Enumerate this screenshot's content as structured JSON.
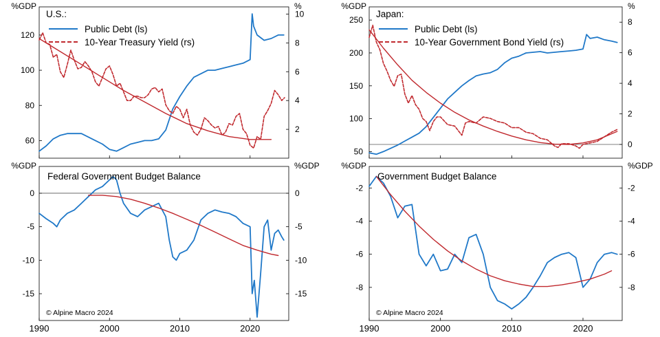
{
  "chart_data": [
    {
      "id": "us_top",
      "type": "line",
      "title": "U.S.:",
      "left_unit": "%GDP",
      "right_unit": "%",
      "ylim_left": [
        50,
        136
      ],
      "yticks_left": [
        60,
        80,
        100,
        120
      ],
      "ylim_right": [
        0,
        10.5
      ],
      "yticks_right": [
        2,
        4,
        6,
        8,
        10
      ],
      "xlim": [
        1990,
        2025.5
      ],
      "xticks": [
        1990,
        2000,
        2010,
        2020
      ],
      "legend": [
        "Public Debt (ls)",
        "10-Year Treasury Yield (rs)"
      ],
      "series": [
        {
          "name": "Public Debt (ls)",
          "axis": "left",
          "color": "#1f78c8",
          "style": "solid",
          "x": [
            1990,
            1991,
            1992,
            1993,
            1994,
            1995,
            1996,
            1997,
            1998,
            1999,
            2000,
            2001,
            2002,
            2003,
            2004,
            2005,
            2006,
            2007,
            2008,
            2009,
            2010,
            2011,
            2012,
            2013,
            2014,
            2015,
            2016,
            2017,
            2018,
            2019,
            2020,
            2020.3,
            2020.5,
            2021,
            2022,
            2023,
            2024,
            2024.8
          ],
          "y": [
            54,
            57,
            61,
            63,
            64,
            64,
            64,
            62,
            60,
            58,
            55,
            54,
            56,
            58,
            59,
            60,
            60,
            61,
            66,
            78,
            85,
            91,
            96,
            98,
            100,
            100,
            101,
            102,
            103,
            104,
            106,
            132,
            125,
            120,
            117,
            118,
            120,
            120
          ]
        },
        {
          "name": "10-Year Treasury Yield (rs)",
          "axis": "right",
          "color": "#c0282d",
          "style": "dashed",
          "x": [
            1990,
            1990.5,
            1991,
            1991.5,
            1992,
            1992.5,
            1993,
            1993.5,
            1994,
            1994.5,
            1995,
            1995.5,
            1996,
            1996.5,
            1997,
            1997.5,
            1998,
            1998.5,
            1999,
            1999.5,
            2000,
            2000.5,
            2001,
            2001.5,
            2002,
            2002.5,
            2003,
            2003.5,
            2004,
            2004.5,
            2005,
            2005.5,
            2006,
            2006.5,
            2007,
            2007.5,
            2008,
            2008.5,
            2009,
            2009.5,
            2010,
            2010.5,
            2011,
            2011.5,
            2012,
            2012.5,
            2013,
            2013.5,
            2014,
            2014.5,
            2015,
            2015.5,
            2016,
            2016.5,
            2017,
            2017.5,
            2018,
            2018.5,
            2019,
            2019.5,
            2020,
            2020.5,
            2021,
            2021.5,
            2022,
            2022.5,
            2023,
            2023.5,
            2024,
            2024.5,
            2024.9
          ],
          "y": [
            8.2,
            8.7,
            8.0,
            7.9,
            7.0,
            7.2,
            6.0,
            5.6,
            6.5,
            7.5,
            6.8,
            6.2,
            6.3,
            6.7,
            6.4,
            6.0,
            5.3,
            5.0,
            5.6,
            6.2,
            6.4,
            5.8,
            5.0,
            5.2,
            4.6,
            4.0,
            4.0,
            4.3,
            4.3,
            4.2,
            4.2,
            4.4,
            4.8,
            4.9,
            4.6,
            4.8,
            3.7,
            3.3,
            3.1,
            3.6,
            3.4,
            2.8,
            3.4,
            2.3,
            1.8,
            1.6,
            2.0,
            2.8,
            2.6,
            2.3,
            2.1,
            2.2,
            1.6,
            1.8,
            2.4,
            2.3,
            2.9,
            3.1,
            2.0,
            1.7,
            0.9,
            0.7,
            1.5,
            1.3,
            2.9,
            3.3,
            3.8,
            4.7,
            4.4,
            4.0,
            4.2
          ]
        },
        {
          "name": "",
          "axis": "right",
          "color": "#c0282d",
          "style": "trend",
          "x": [
            1990,
            1993,
            1996,
            1999,
            2002,
            2005,
            2008,
            2011,
            2014,
            2017,
            2020,
            2023
          ],
          "y": [
            8.3,
            7.4,
            6.5,
            5.6,
            4.7,
            3.9,
            3.1,
            2.4,
            1.9,
            1.5,
            1.3,
            1.3
          ]
        }
      ]
    },
    {
      "id": "japan_top",
      "type": "line",
      "title": "Japan:",
      "left_unit": "%GDP",
      "right_unit": "%",
      "ylim_left": [
        40,
        270
      ],
      "yticks_left": [
        50,
        100,
        150,
        200,
        250
      ],
      "ylim_right": [
        -0.9,
        9
      ],
      "yticks_right": [
        0,
        2,
        4,
        6,
        8
      ],
      "xlim": [
        1990,
        2025.5
      ],
      "xticks": [
        1990,
        2000,
        2010,
        2020
      ],
      "legend": [
        "Public Debt (ls)",
        "10-Year Government Bond Yield (rs)"
      ],
      "series": [
        {
          "name": "Public Debt (ls)",
          "axis": "left",
          "color": "#1f78c8",
          "style": "solid",
          "x": [
            1990,
            1991,
            1992,
            1993,
            1994,
            1995,
            1996,
            1997,
            1998,
            1999,
            2000,
            2001,
            2002,
            2003,
            2004,
            2005,
            2006,
            2007,
            2008,
            2009,
            2010,
            2011,
            2012,
            2013,
            2014,
            2015,
            2016,
            2017,
            2018,
            2019,
            2020,
            2020.5,
            2021,
            2022,
            2023,
            2024,
            2024.8
          ],
          "y": [
            48,
            46,
            50,
            55,
            60,
            66,
            72,
            78,
            88,
            102,
            116,
            130,
            140,
            150,
            158,
            165,
            168,
            170,
            175,
            185,
            192,
            195,
            200,
            201,
            202,
            200,
            201,
            202,
            203,
            204,
            206,
            228,
            222,
            224,
            220,
            218,
            216
          ]
        },
        {
          "name": "10-Year Government Bond Yield (rs)",
          "axis": "right",
          "color": "#c0282d",
          "style": "dashed",
          "x": [
            1990,
            1990.5,
            1991,
            1991.5,
            1992,
            1992.5,
            1993,
            1993.5,
            1994,
            1994.5,
            1995,
            1995.5,
            1996,
            1996.5,
            1997,
            1997.5,
            1998,
            1998.5,
            1999,
            1999.5,
            2000,
            2001,
            2002,
            2003,
            2003.5,
            2004,
            2005,
            2006,
            2007,
            2008,
            2009,
            2010,
            2011,
            2012,
            2013,
            2014,
            2015,
            2016,
            2016.5,
            2017,
            2018,
            2019,
            2019.5,
            2020,
            2021,
            2022,
            2023,
            2024,
            2024.9
          ],
          "y": [
            7.0,
            7.8,
            6.7,
            6.2,
            5.3,
            4.8,
            4.2,
            3.8,
            4.5,
            4.6,
            3.3,
            2.7,
            3.2,
            2.6,
            2.3,
            1.7,
            1.5,
            0.9,
            1.5,
            1.8,
            1.8,
            1.3,
            1.2,
            0.6,
            1.4,
            1.5,
            1.4,
            1.8,
            1.7,
            1.5,
            1.4,
            1.1,
            1.1,
            0.8,
            0.7,
            0.4,
            0.3,
            -0.1,
            -0.2,
            0.05,
            0.05,
            -0.1,
            -0.25,
            0.0,
            0.1,
            0.2,
            0.5,
            0.8,
            1.0
          ]
        },
        {
          "name": "",
          "axis": "right",
          "color": "#c0282d",
          "style": "trend",
          "x": [
            1990,
            1992,
            1994,
            1996,
            1998,
            2000,
            2002,
            2004,
            2006,
            2008,
            2010,
            2012,
            2014,
            2016,
            2018,
            2020,
            2022,
            2024.8
          ],
          "y": [
            7.5,
            6.3,
            5.2,
            4.2,
            3.4,
            2.7,
            2.1,
            1.6,
            1.2,
            0.85,
            0.55,
            0.3,
            0.12,
            0.02,
            0.0,
            0.1,
            0.3,
            0.85
          ]
        }
      ]
    },
    {
      "id": "us_bottom",
      "type": "line",
      "title": "Federal Government Budget Balance",
      "left_unit": "%GDP",
      "right_unit": "%GDP",
      "ylim_left": [
        -19,
        4
      ],
      "yticks_left": [
        0,
        -5,
        -10,
        -15
      ],
      "ylim_right": [
        -19,
        4
      ],
      "yticks_right": [
        0,
        -5,
        -10,
        -15
      ],
      "xlim": [
        1990,
        2025.5
      ],
      "xticks": [
        1990,
        2000,
        2010,
        2020
      ],
      "zero_line": true,
      "credit": "© Alpine Macro 2024",
      "series": [
        {
          "name": "",
          "axis": "left",
          "color": "#1f78c8",
          "style": "solid",
          "x": [
            1990,
            1991,
            1992,
            1992.5,
            1993,
            1994,
            1995,
            1996,
            1997,
            1998,
            1999,
            2000,
            2000.5,
            2001,
            2001.5,
            2002,
            2003,
            2004,
            2005,
            2006,
            2007,
            2008,
            2008.5,
            2009,
            2009.5,
            2010,
            2011,
            2012,
            2013,
            2014,
            2015,
            2016,
            2017,
            2018,
            2019,
            2020,
            2020.3,
            2020.6,
            2021,
            2021.5,
            2022,
            2022.5,
            2023,
            2023.5,
            2024,
            2024.5,
            2024.8
          ],
          "y": [
            -3.0,
            -3.8,
            -4.5,
            -5.0,
            -4.0,
            -3.0,
            -2.5,
            -1.5,
            -0.5,
            0.5,
            1.0,
            2.0,
            2.5,
            2.0,
            0.0,
            -1.5,
            -3.0,
            -3.5,
            -2.5,
            -2.0,
            -1.5,
            -3.5,
            -7.0,
            -9.5,
            -10.0,
            -9.0,
            -8.5,
            -7.0,
            -4.0,
            -3.0,
            -2.5,
            -2.8,
            -3.0,
            -3.5,
            -4.5,
            -5.0,
            -15.0,
            -13.0,
            -18.5,
            -12.0,
            -5.0,
            -4.0,
            -8.5,
            -6.0,
            -5.5,
            -6.5,
            -7.0
          ]
        },
        {
          "name": "",
          "axis": "left",
          "color": "#c0282d",
          "style": "trend",
          "x": [
            1997,
            1999,
            2001,
            2003,
            2005,
            2007,
            2009,
            2011,
            2013,
            2015,
            2017,
            2019,
            2021,
            2023,
            2024
          ],
          "y": [
            -0.3,
            -0.3,
            -0.5,
            -0.9,
            -1.5,
            -2.2,
            -3.0,
            -3.9,
            -4.8,
            -5.8,
            -6.8,
            -7.8,
            -8.5,
            -9.1,
            -9.3
          ]
        }
      ]
    },
    {
      "id": "japan_bottom",
      "type": "line",
      "title": "Government Budget Balance",
      "left_unit": "%GDP",
      "right_unit": "%GDP",
      "ylim_left": [
        -10,
        -0.7
      ],
      "yticks_left": [
        -2,
        -4,
        -6,
        -8
      ],
      "ylim_right": [
        -10,
        -0.7
      ],
      "yticks_right": [
        -2,
        -4,
        -6,
        -8
      ],
      "xlim": [
        1990,
        2025.5
      ],
      "xticks": [
        1990,
        2000,
        2010,
        2020
      ],
      "credit": "© Alpine Macro 2024",
      "series": [
        {
          "name": "",
          "axis": "left",
          "color": "#1f78c8",
          "style": "solid",
          "x": [
            1990,
            1991,
            1992,
            1993,
            1994,
            1995,
            1996,
            1997,
            1998,
            1999,
            2000,
            2001,
            2002,
            2003,
            2004,
            2005,
            2006,
            2007,
            2008,
            2009,
            2010,
            2011,
            2012,
            2013,
            2014,
            2015,
            2016,
            2017,
            2018,
            2019,
            2020,
            2021,
            2022,
            2023,
            2024,
            2024.8
          ],
          "y": [
            -1.9,
            -1.3,
            -1.7,
            -2.5,
            -3.8,
            -3.1,
            -3.0,
            -6.0,
            -6.7,
            -6.0,
            -7.0,
            -6.9,
            -6.0,
            -6.5,
            -5.0,
            -4.8,
            -6.0,
            -8.0,
            -8.8,
            -9.0,
            -9.3,
            -9.0,
            -8.6,
            -8.0,
            -7.3,
            -6.5,
            -6.2,
            -6.0,
            -5.9,
            -6.2,
            -8.0,
            -7.5,
            -6.5,
            -6.0,
            -5.9,
            -6.0
          ]
        },
        {
          "name": "",
          "axis": "left",
          "color": "#c0282d",
          "style": "trend",
          "x": [
            1991,
            1993,
            1995,
            1997,
            1999,
            2001,
            2003,
            2005,
            2007,
            2009,
            2011,
            2013,
            2015,
            2017,
            2019,
            2021,
            2023,
            2024
          ],
          "y": [
            -1.3,
            -2.4,
            -3.4,
            -4.3,
            -5.1,
            -5.8,
            -6.4,
            -6.9,
            -7.3,
            -7.6,
            -7.8,
            -7.95,
            -7.95,
            -7.85,
            -7.7,
            -7.5,
            -7.2,
            -7.0
          ]
        }
      ]
    }
  ]
}
